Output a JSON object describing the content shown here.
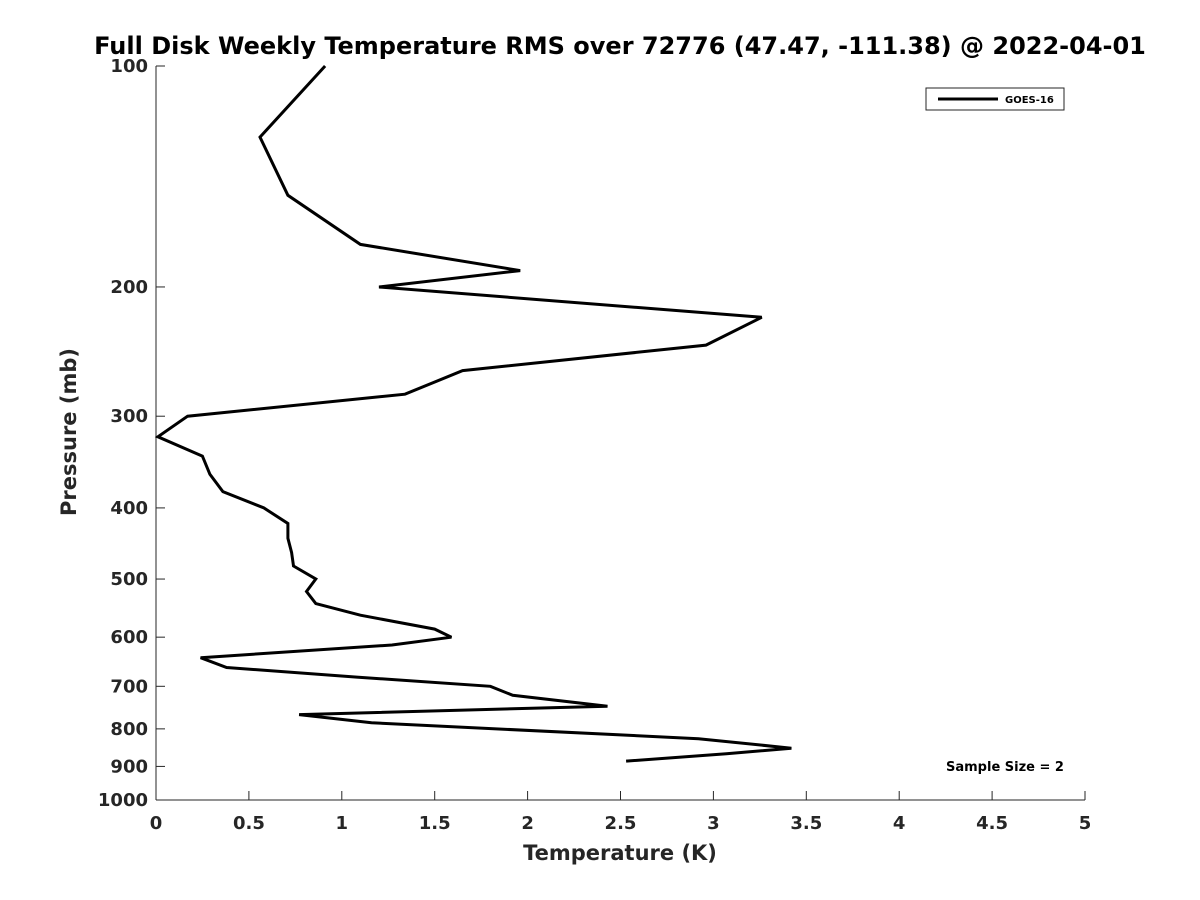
{
  "chart_data": {
    "type": "line",
    "title": "Full Disk Weekly Temperature RMS over 72776 (47.47, -111.38) @ 2022-04-01",
    "xlabel": "Temperature (K)",
    "ylabel": "Pressure (mb)",
    "xlim": [
      0,
      5
    ],
    "ylim": [
      1000,
      100
    ],
    "yscale": "log",
    "x_ticks": [
      0,
      0.5,
      1,
      1.5,
      2,
      2.5,
      3,
      3.5,
      4,
      4.5,
      5
    ],
    "x_tick_labels": [
      "0",
      "0.5",
      "1",
      "1.5",
      "2",
      "2.5",
      "3",
      "3.5",
      "4",
      "4.5",
      "5"
    ],
    "y_ticks": [
      100,
      200,
      300,
      400,
      500,
      600,
      700,
      800,
      900,
      1000
    ],
    "y_tick_labels": [
      "100",
      "200",
      "300",
      "400",
      "500",
      "600",
      "700",
      "800",
      "900",
      "1000"
    ],
    "grid": false,
    "legend": {
      "position": "top-right",
      "entries": [
        "GOES-16"
      ]
    },
    "annotation": "Sample Size = 2",
    "series": [
      {
        "name": "GOES-16",
        "color": "#000000",
        "points": [
          {
            "x": 0.91,
            "y": 100
          },
          {
            "x": 0.56,
            "y": 125
          },
          {
            "x": 0.71,
            "y": 150
          },
          {
            "x": 1.1,
            "y": 175
          },
          {
            "x": 1.96,
            "y": 190
          },
          {
            "x": 1.2,
            "y": 200
          },
          {
            "x": 3.26,
            "y": 220
          },
          {
            "x": 2.96,
            "y": 240
          },
          {
            "x": 1.65,
            "y": 260
          },
          {
            "x": 1.34,
            "y": 280
          },
          {
            "x": 0.17,
            "y": 300
          },
          {
            "x": 0.01,
            "y": 320
          },
          {
            "x": 0.25,
            "y": 340
          },
          {
            "x": 0.29,
            "y": 360
          },
          {
            "x": 0.36,
            "y": 380
          },
          {
            "x": 0.58,
            "y": 400
          },
          {
            "x": 0.71,
            "y": 420
          },
          {
            "x": 0.71,
            "y": 440
          },
          {
            "x": 0.73,
            "y": 460
          },
          {
            "x": 0.74,
            "y": 480
          },
          {
            "x": 0.86,
            "y": 500
          },
          {
            "x": 0.81,
            "y": 520
          },
          {
            "x": 0.86,
            "y": 540
          },
          {
            "x": 1.1,
            "y": 560
          },
          {
            "x": 1.5,
            "y": 585
          },
          {
            "x": 1.59,
            "y": 600
          },
          {
            "x": 1.27,
            "y": 615
          },
          {
            "x": 0.24,
            "y": 640
          },
          {
            "x": 0.38,
            "y": 660
          },
          {
            "x": 1.08,
            "y": 680
          },
          {
            "x": 1.8,
            "y": 700
          },
          {
            "x": 1.92,
            "y": 720
          },
          {
            "x": 2.43,
            "y": 745
          },
          {
            "x": 0.77,
            "y": 765
          },
          {
            "x": 1.16,
            "y": 785
          },
          {
            "x": 2.92,
            "y": 825
          },
          {
            "x": 3.42,
            "y": 850
          },
          {
            "x": 3.07,
            "y": 865
          },
          {
            "x": 2.53,
            "y": 885
          }
        ]
      }
    ]
  }
}
